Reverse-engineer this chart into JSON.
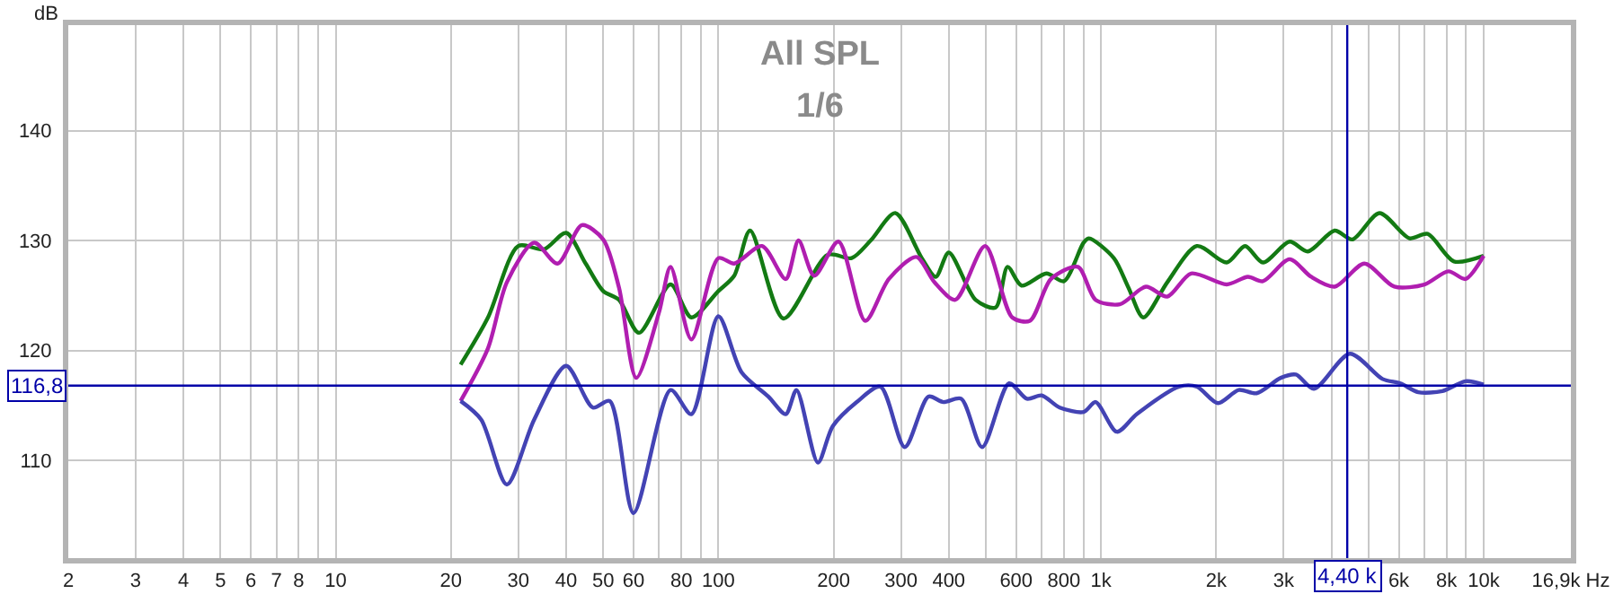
{
  "chart_data": {
    "type": "line",
    "title": "All SPL",
    "subtitle": "1/6",
    "ylabel": "dB",
    "xlim": [
      2,
      16900
    ],
    "ylim": [
      101.1,
      149.6
    ],
    "xticks": [
      2,
      3,
      4,
      5,
      6,
      7,
      8,
      {
        "value": 9,
        "label": null
      },
      10,
      20,
      30,
      40,
      50,
      60,
      {
        "value": 70,
        "label": null
      },
      80,
      {
        "value": 90,
        "label": null
      },
      100,
      200,
      300,
      400,
      {
        "value": 500,
        "label": null
      },
      600,
      {
        "value": 700,
        "label": null
      },
      800,
      {
        "value": 900,
        "label": null
      },
      {
        "value": 1000,
        "label": "1k"
      },
      {
        "value": 2000,
        "label": "2k"
      },
      {
        "value": 3000,
        "label": "3k"
      },
      {
        "value": 4000,
        "label": null
      },
      {
        "value": 5000,
        "label": null
      },
      {
        "value": 6000,
        "label": "6k"
      },
      {
        "value": 7000,
        "label": null
      },
      {
        "value": 8000,
        "label": "8k"
      },
      {
        "value": 9000,
        "label": null
      },
      {
        "value": 10000,
        "label": "10k"
      },
      {
        "value": 16900,
        "label": "16,9k Hz"
      }
    ],
    "yticks": [
      110,
      120,
      130,
      140
    ],
    "log": "x",
    "grid": true,
    "marker": "none",
    "line_style": "solid",
    "ref_lines": [
      {
        "axis": "y",
        "value": 116.8,
        "label": "116,8",
        "color": "#0000a8"
      },
      {
        "axis": "x",
        "value": 4400,
        "label": "4,40 k",
        "color": "#0000a8"
      }
    ],
    "series": [
      {
        "color": "#137a13",
        "x": [
          21.2,
          25,
          30,
          35,
          40,
          45,
          50,
          55,
          62,
          75,
          85,
          100,
          110,
          121,
          148,
          193,
          223,
          250,
          290,
          340,
          370,
          400,
          470,
          530,
          570,
          620,
          720,
          800,
          900,
          930,
          1080,
          1180,
          1290,
          1490,
          1780,
          2130,
          2380,
          2650,
          3110,
          3470,
          4080,
          4540,
          5340,
          6400,
          7140,
          8360,
          10000
        ],
        "values": [
          118.7,
          123,
          129.5,
          129.2,
          130.7,
          127.9,
          125.4,
          124.6,
          121.6,
          126,
          123,
          125.4,
          126.8,
          130.9,
          122.9,
          128.7,
          128.4,
          130,
          132.5,
          128.4,
          126.7,
          128.9,
          124.6,
          123.9,
          127.6,
          125.9,
          127,
          126.3,
          129.8,
          130.2,
          128.4,
          125.7,
          123,
          126.2,
          129.5,
          128,
          129.5,
          128,
          129.9,
          129,
          130.9,
          130.1,
          132.5,
          130.2,
          130.6,
          128.1,
          128.6
        ]
      },
      {
        "color": "#b01eb0",
        "x": [
          21.2,
          25,
          28,
          33,
          38,
          44,
          50,
          55,
          61,
          70,
          75,
          85,
          100,
          110,
          130,
          150,
          162,
          178,
          206,
          242,
          279,
          329,
          367,
          416,
          498,
          586,
          652,
          740,
          870,
          968,
          1120,
          1310,
          1490,
          1720,
          2130,
          2420,
          2650,
          3110,
          3540,
          4080,
          4880,
          5840,
          7000,
          8090,
          8970,
          10000
        ],
        "values": [
          115.4,
          120.2,
          126.2,
          129.8,
          127.9,
          131.4,
          130.1,
          125.7,
          117.5,
          123.5,
          127.6,
          121,
          128.4,
          127.9,
          129.5,
          126.5,
          130,
          126.8,
          129.9,
          122.7,
          126.5,
          128.5,
          126.2,
          124.6,
          129.5,
          123,
          122.7,
          126.5,
          127.6,
          124.6,
          124.2,
          125.8,
          124.9,
          127,
          126,
          126.7,
          126.3,
          128.3,
          126.7,
          125.8,
          127.9,
          125.8,
          126,
          127.2,
          126.5,
          128.6
        ]
      },
      {
        "color": "#4343b4",
        "x": [
          21.2,
          24,
          28,
          33,
          40,
          47,
          52,
          60,
          75,
          85,
          100,
          115,
          135,
          150,
          160,
          182,
          199,
          230,
          265,
          307,
          354,
          387,
          431,
          489,
          575,
          640,
          700,
          780,
          901,
          968,
          1100,
          1240,
          1600,
          1780,
          2020,
          2290,
          2550,
          2950,
          3230,
          3600,
          4470,
          5440,
          6060,
          6750,
          7800,
          8970,
          10000
        ],
        "values": [
          115.4,
          113.7,
          107.8,
          113.7,
          118.6,
          114.8,
          115.4,
          105.2,
          116.4,
          114.2,
          123.1,
          118,
          115.8,
          114.2,
          116.4,
          109.8,
          113.1,
          115.3,
          116.7,
          111.2,
          115.8,
          115.3,
          115.6,
          111.2,
          117,
          115.6,
          115.9,
          114.8,
          114.4,
          115.3,
          112.6,
          114.2,
          116.7,
          116.7,
          115.2,
          116.4,
          116.1,
          117.5,
          117.8,
          116.5,
          119.7,
          117.4,
          117,
          116.2,
          116.3,
          117.2,
          116.9
        ]
      }
    ]
  }
}
